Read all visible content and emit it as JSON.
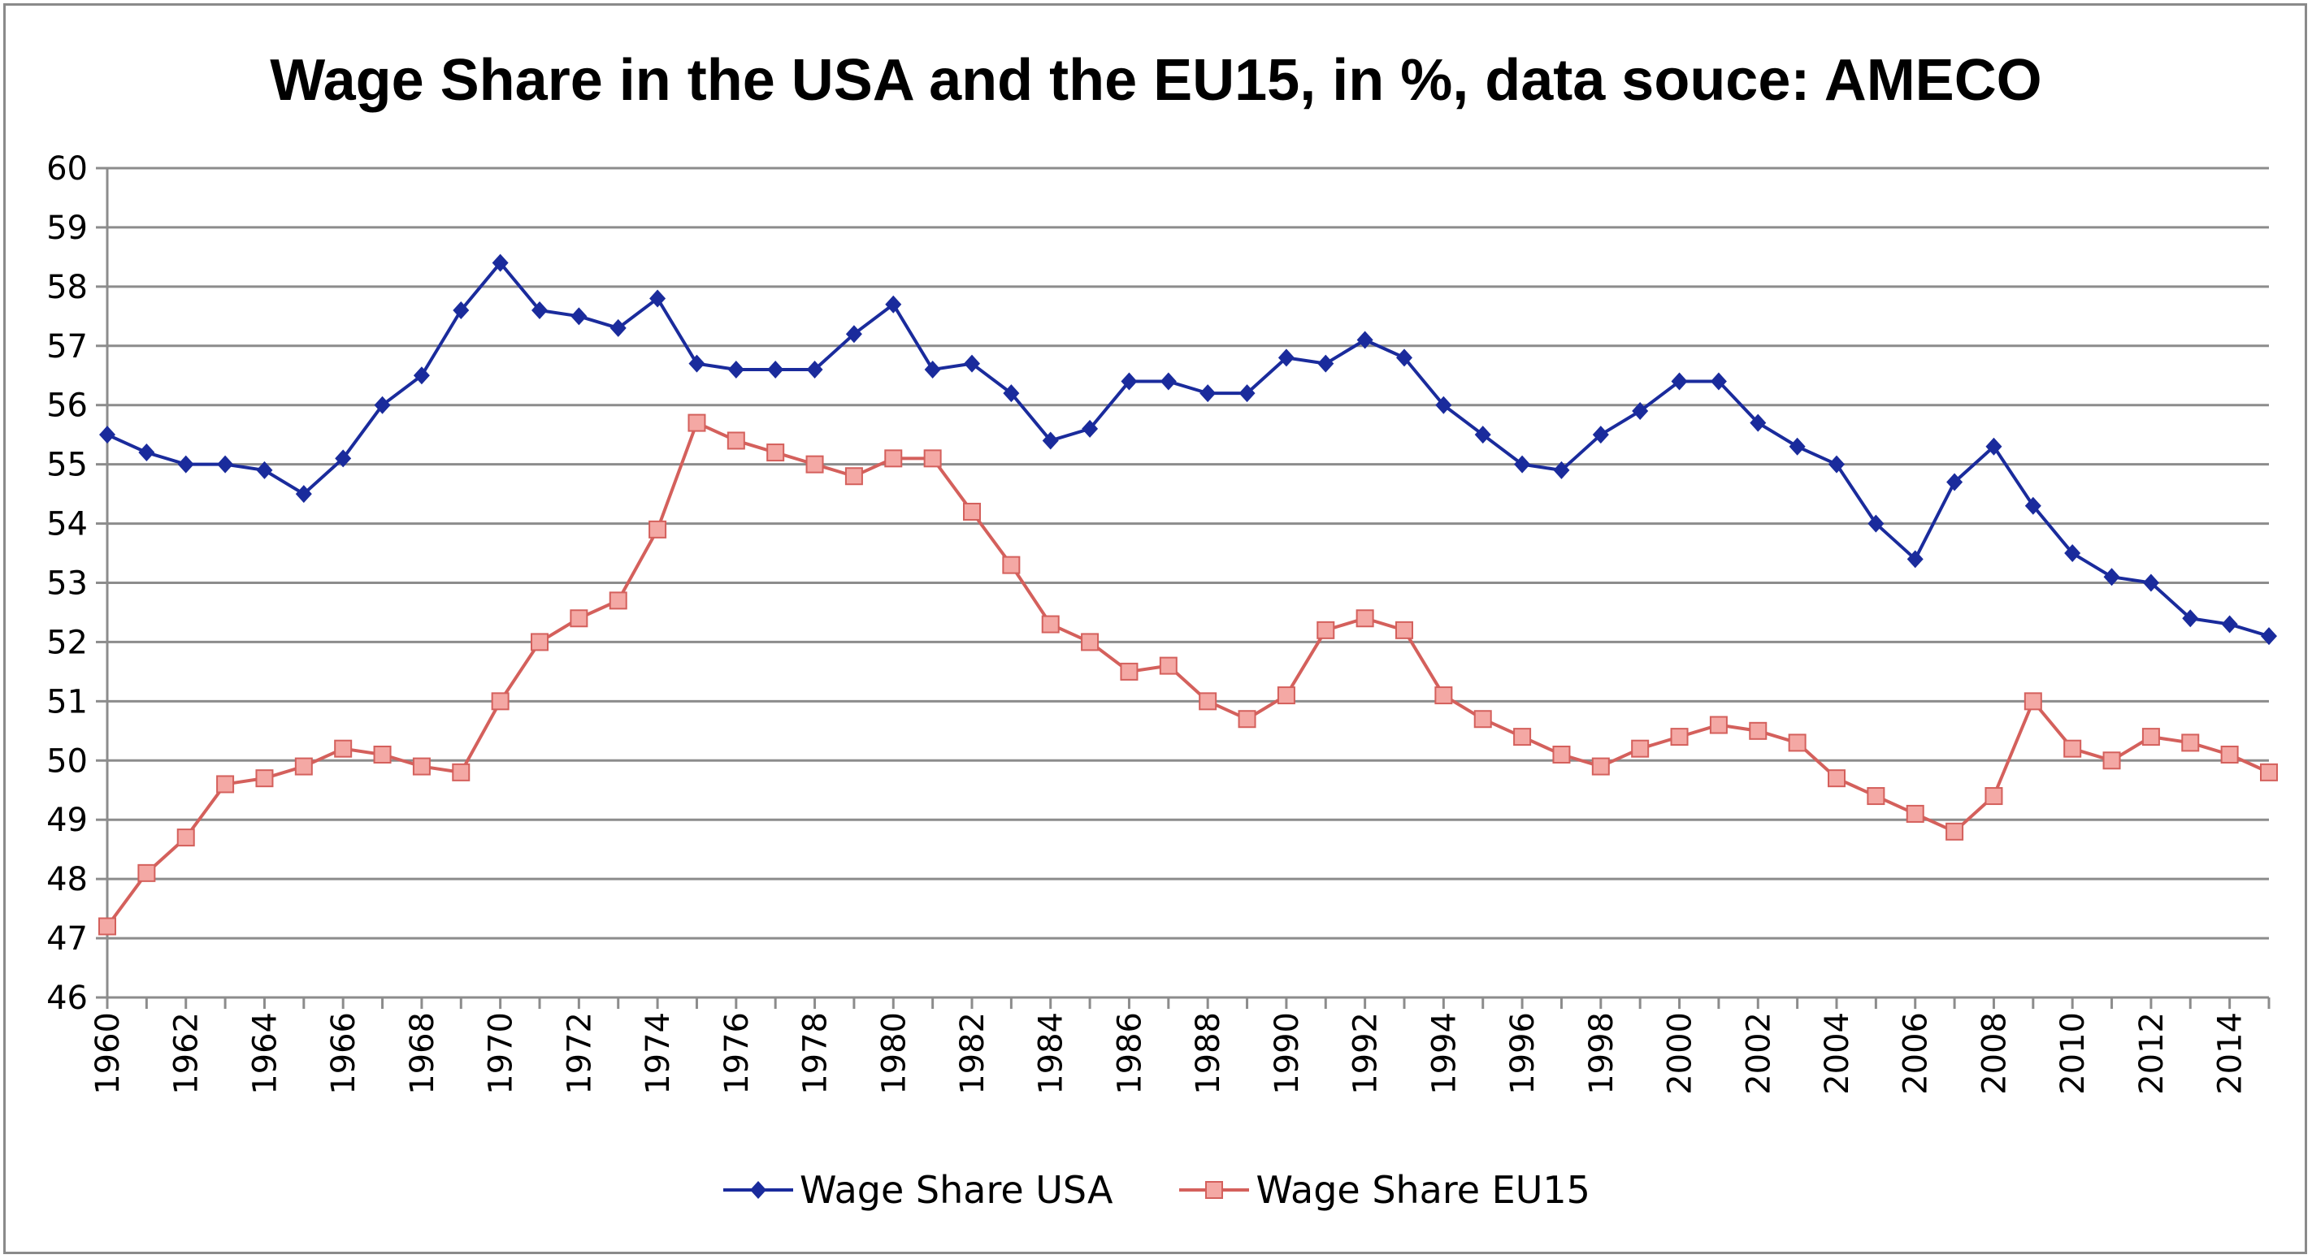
{
  "chart_data": {
    "type": "line",
    "title": "Wage Share in the USA and the EU15, in %, data souce:  AMECO",
    "xlabel": "",
    "ylabel": "",
    "ylim": [
      46,
      60
    ],
    "yticks": [
      46,
      47,
      48,
      49,
      50,
      51,
      52,
      53,
      54,
      55,
      56,
      57,
      58,
      59,
      60
    ],
    "xtick_labels": [
      "1960",
      "1962",
      "1964",
      "1966",
      "1968",
      "1970",
      "1972",
      "1974",
      "1976",
      "1978",
      "1980",
      "1982",
      "1984",
      "1986",
      "1988",
      "1990",
      "1992",
      "1994",
      "1996",
      "1998",
      "2000",
      "2002",
      "2004",
      "2006",
      "2008",
      "2010",
      "2012",
      "2014"
    ],
    "grid": "horizontal",
    "legend_position": "bottom",
    "x": [
      1960,
      1961,
      1962,
      1963,
      1964,
      1965,
      1966,
      1967,
      1968,
      1969,
      1970,
      1971,
      1972,
      1973,
      1974,
      1975,
      1976,
      1977,
      1978,
      1979,
      1980,
      1981,
      1982,
      1983,
      1984,
      1985,
      1986,
      1987,
      1988,
      1989,
      1990,
      1991,
      1992,
      1993,
      1994,
      1995,
      1996,
      1997,
      1998,
      1999,
      2000,
      2001,
      2002,
      2003,
      2004,
      2005,
      2006,
      2007,
      2008,
      2009,
      2010,
      2011,
      2012,
      2013,
      2014,
      2015
    ],
    "series": [
      {
        "name": "Wage Share USA",
        "color": "#1a2b9c",
        "marker": "diamond",
        "values": [
          55.5,
          55.2,
          55.0,
          55.0,
          54.9,
          54.5,
          55.1,
          56.0,
          56.5,
          57.6,
          58.4,
          57.6,
          57.5,
          57.3,
          57.8,
          56.7,
          56.6,
          56.6,
          56.6,
          57.2,
          57.7,
          56.6,
          56.7,
          56.2,
          55.4,
          55.6,
          56.4,
          56.4,
          56.2,
          56.2,
          56.8,
          56.7,
          57.1,
          56.8,
          56.0,
          55.5,
          55.0,
          54.9,
          55.5,
          55.9,
          56.4,
          56.4,
          55.7,
          55.3,
          55.0,
          54.0,
          53.4,
          54.7,
          55.3,
          54.3,
          53.5,
          53.1,
          53.0,
          52.4,
          52.3,
          52.1
        ]
      },
      {
        "name": "Wage Share EU15",
        "color": "#d4605c",
        "marker_fill": "#f4a8a4",
        "marker": "square",
        "values": [
          47.2,
          48.1,
          48.7,
          49.6,
          49.7,
          49.9,
          50.2,
          50.1,
          49.9,
          49.8,
          51.0,
          52.0,
          52.4,
          52.7,
          53.9,
          55.7,
          55.4,
          55.2,
          55.0,
          54.8,
          55.1,
          55.1,
          54.2,
          53.3,
          52.3,
          52.0,
          51.5,
          51.6,
          51.0,
          50.7,
          51.1,
          52.2,
          52.4,
          52.2,
          51.1,
          50.7,
          50.4,
          50.1,
          49.9,
          50.2,
          50.4,
          50.6,
          50.5,
          50.3,
          49.7,
          49.4,
          49.1,
          48.8,
          49.4,
          51.0,
          50.2,
          50.0,
          50.4,
          50.3,
          50.1,
          49.8
        ]
      }
    ]
  }
}
